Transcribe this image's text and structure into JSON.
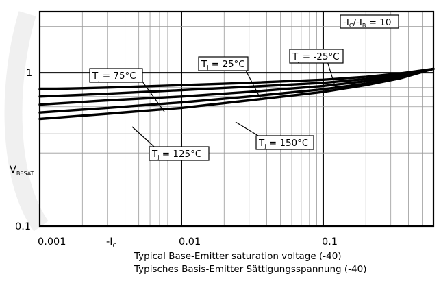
{
  "chart_data": {
    "type": "line",
    "x_scale": "log",
    "y_scale": "log",
    "xlim": [
      0.001,
      0.6
    ],
    "ylim": [
      0.1,
      2.5
    ],
    "grid": true,
    "x_ticks": [
      {
        "value": 0.001,
        "label": "0.001"
      },
      {
        "value": 0.01,
        "label": "0.01"
      },
      {
        "value": 0.1,
        "label": "0.1"
      }
    ],
    "y_ticks": [
      {
        "value": 1,
        "label": "1"
      },
      {
        "value": 0.1,
        "label": "0.1"
      }
    ],
    "xlabel": {
      "main": "-I",
      "sub": "C"
    },
    "ylabel": {
      "main": "V",
      "sub": "BESAT"
    },
    "condition": {
      "p1": "-I",
      "s1": "C",
      "p2": "/-I",
      "s2": "B",
      "p3": " =  10"
    },
    "caption_en": "Typical Base-Emitter saturation voltage (-40)",
    "caption_de": "Typisches Basis-Emitter Sättigungsspannung (-40)",
    "series": [
      {
        "name": "-25°C",
        "label": "T",
        "label_sub": "j",
        "label_rest": " =   -25°C",
        "x": [
          0.001,
          0.003,
          0.01,
          0.03,
          0.1,
          0.2,
          0.35,
          0.6
        ],
        "y": [
          0.78,
          0.8,
          0.83,
          0.86,
          0.9,
          0.94,
          0.99,
          1.06
        ]
      },
      {
        "name": "25°C",
        "label": "T",
        "label_sub": "j",
        "label_rest": " =   25°C",
        "x": [
          0.001,
          0.003,
          0.01,
          0.03,
          0.1,
          0.2,
          0.35,
          0.6
        ],
        "y": [
          0.7,
          0.73,
          0.77,
          0.81,
          0.86,
          0.91,
          0.97,
          1.06
        ]
      },
      {
        "name": "75°C",
        "label": "T",
        "label_sub": "j",
        "label_rest": " =   75°C",
        "x": [
          0.001,
          0.003,
          0.01,
          0.03,
          0.1,
          0.2,
          0.35,
          0.6
        ],
        "y": [
          0.62,
          0.66,
          0.7,
          0.75,
          0.82,
          0.88,
          0.95,
          1.06
        ]
      },
      {
        "name": "125°C",
        "label": "T",
        "label_sub": "j",
        "label_rest": " =   125°C",
        "x": [
          0.001,
          0.003,
          0.01,
          0.03,
          0.1,
          0.2,
          0.35,
          0.6
        ],
        "y": [
          0.55,
          0.59,
          0.64,
          0.7,
          0.78,
          0.85,
          0.93,
          1.06
        ]
      },
      {
        "name": "150°C",
        "label": "T",
        "label_sub": "j",
        "label_rest": " =   150°C",
        "x": [
          0.001,
          0.003,
          0.01,
          0.03,
          0.1,
          0.2,
          0.35,
          0.6
        ],
        "y": [
          0.5,
          0.54,
          0.59,
          0.66,
          0.75,
          0.83,
          0.92,
          1.06
        ]
      }
    ]
  }
}
